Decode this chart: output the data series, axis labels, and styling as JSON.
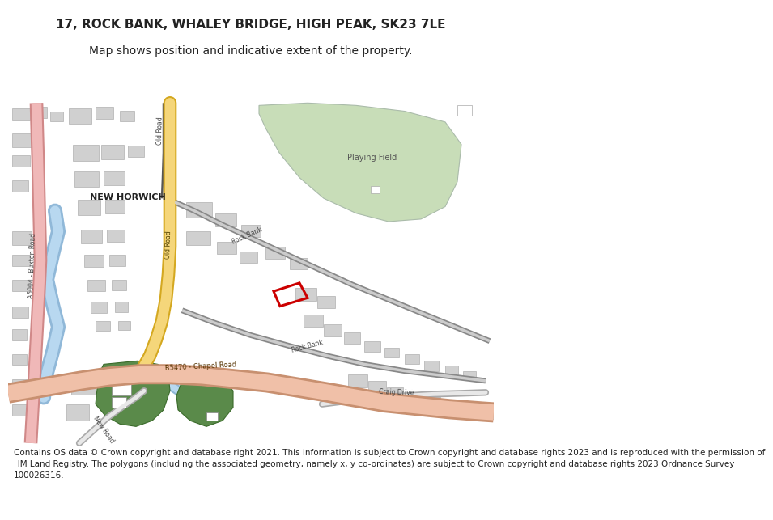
{
  "title_line1": "17, ROCK BANK, WHALEY BRIDGE, HIGH PEAK, SK23 7LE",
  "title_line2": "Map shows position and indicative extent of the property.",
  "footer_text": "Contains OS data © Crown copyright and database right 2021. This information is subject to Crown copyright and database rights 2023 and is reproduced with the permission of\nHM Land Registry. The polygons (including the associated geometry, namely x, y co-ordinates) are subject to Crown copyright and database rights 2023 Ordnance Survey\n100026316.",
  "bg_color": "#ffffff",
  "map_bg": "#f8f8f8",
  "road_yellow_fill": "#f5d67a",
  "road_yellow_border": "#d4a820",
  "road_pink_fill": "#f0b8b8",
  "road_pink_border": "#d08888",
  "road_salmon_fill": "#f0c0a8",
  "road_salmon_border": "#c89070",
  "road_dark": "#888888",
  "road_white": "#ffffff",
  "road_outline": "#cccccc",
  "water_blue": "#b8d8f0",
  "water_blue2": "#90b8d8",
  "green_playing": "#c8ddb8",
  "green_playing_border": "#aabbaa",
  "green_dark1": "#5a8a4a",
  "green_dark2": "#3a6a2a",
  "building_gray": "#d0d0d0",
  "building_outline": "#b0b0b0",
  "plot_outline": "#cc0000",
  "text_dark": "#444444",
  "title_fontsize": 11,
  "subtitle_fontsize": 10,
  "footer_fontsize": 7.5
}
